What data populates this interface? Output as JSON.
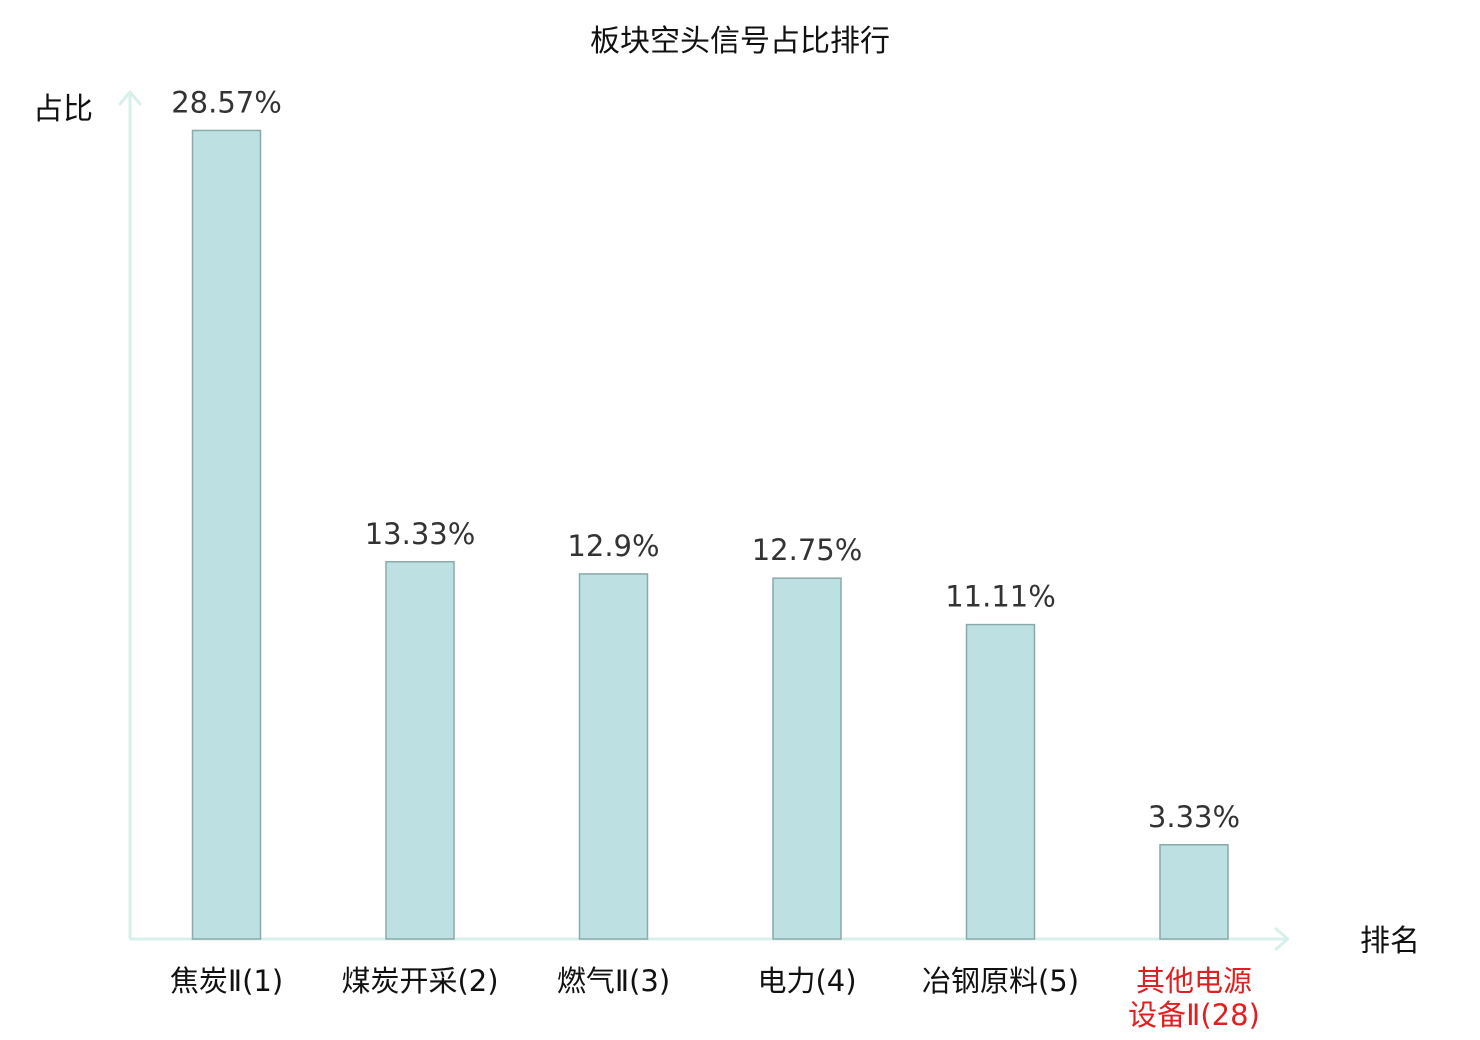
{
  "colors": {
    "bar_fill": "#bde0e2",
    "bar_stroke": "#8aa9ab",
    "axis": "#d8f0ec",
    "value_label": "#333333",
    "category_label": "#111111",
    "highlight_label": "#e02020"
  },
  "chart_data": {
    "type": "bar",
    "title": "板块空头信号占比排行",
    "ylabel": "占比",
    "xlabel": "排名",
    "categories": [
      "焦炭Ⅱ(1)",
      "煤炭开采(2)",
      "燃气Ⅱ(3)",
      "电力(4)",
      "冶钢原料(5)",
      "其他电源\n设备Ⅱ(28)"
    ],
    "values": [
      28.57,
      13.33,
      12.9,
      12.75,
      11.11,
      3.33
    ],
    "value_labels": [
      "28.57%",
      "13.33%",
      "12.9%",
      "12.75%",
      "11.11%",
      "3.33%"
    ],
    "highlight_index": 5,
    "ylim": [
      0,
      30
    ],
    "grid": false,
    "legend": "none"
  }
}
